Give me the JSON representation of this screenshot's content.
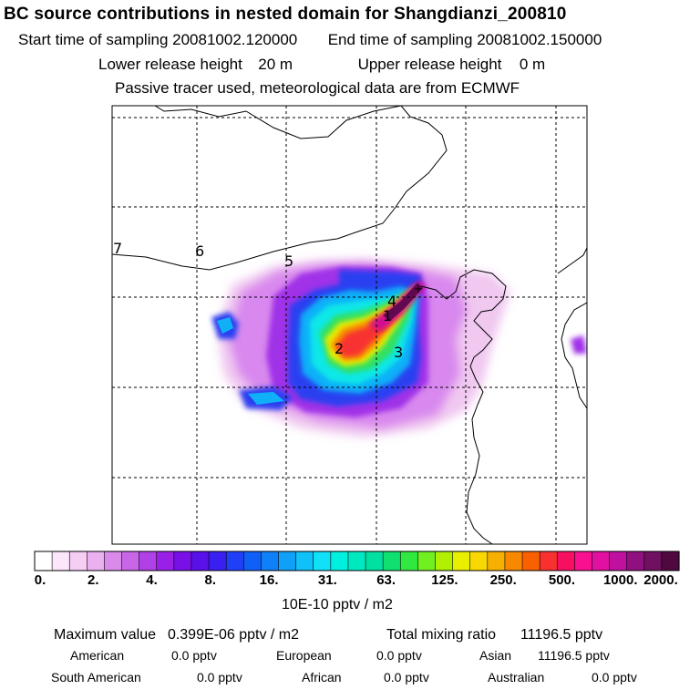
{
  "header": {
    "title": "BC  source contributions in nested domain for Shangdianzi_200810",
    "start_label": "Start time of sampling",
    "start_value": "20081002.120000",
    "end_label": "End time of sampling",
    "end_value": "20081002.150000",
    "lower_label": "Lower release height",
    "lower_value": "20 m",
    "upper_label": "Upper release height",
    "upper_value": "0 m",
    "tracer_note": "Passive tracer used, meteorological data are from ECMWF"
  },
  "chart_data": {
    "type": "heatmap",
    "title": "BC  source contributions in nested domain for Shangdianzi_200810",
    "colorbar": {
      "tick_labels": [
        "0.",
        "2.",
        "4.",
        "8.",
        "16.",
        "31.",
        "63.",
        "125.",
        "250.",
        "500.",
        "1000.",
        "2000."
      ],
      "unit": "10E-10 pptv / m2",
      "colors": [
        "#ffffff",
        "#fbe6fb",
        "#f5cdf5",
        "#eab0f0",
        "#d98aea",
        "#c866e8",
        "#b040e8",
        "#9a20e8",
        "#7a10e8",
        "#5a10e8",
        "#3a20f0",
        "#2040f8",
        "#1060f8",
        "#1080f8",
        "#10a0f8",
        "#10c0f8",
        "#10e0f8",
        "#00f0e0",
        "#00e8c0",
        "#00e0a0",
        "#10e070",
        "#30e840",
        "#70f020",
        "#b0f000",
        "#e8f000",
        "#f8d800",
        "#f8b000",
        "#f88800",
        "#f86000",
        "#f83030",
        "#f81060",
        "#f81090",
        "#e010a0",
        "#c010a0",
        "#901080",
        "#701060",
        "#500840"
      ]
    },
    "sources": [
      {
        "label": "1"
      },
      {
        "label": "2"
      },
      {
        "label": "3"
      },
      {
        "label": "4"
      },
      {
        "label": "5"
      },
      {
        "label": "6"
      },
      {
        "label": "7"
      }
    ]
  },
  "stats": {
    "max_label": "Maximum value",
    "max_value": "0.399E-06 pptv / m2",
    "total_label": "Total mixing ratio",
    "total_value": "11196.5 pptv",
    "regions": [
      {
        "name": "American",
        "value": "0.0 pptv"
      },
      {
        "name": "European",
        "value": "0.0 pptv"
      },
      {
        "name": "Asian",
        "value": "11196.5 pptv"
      },
      {
        "name": "South American",
        "value": "0.0 pptv"
      },
      {
        "name": "African",
        "value": "0.0 pptv"
      },
      {
        "name": "Australian",
        "value": "0.0 pptv"
      }
    ]
  }
}
